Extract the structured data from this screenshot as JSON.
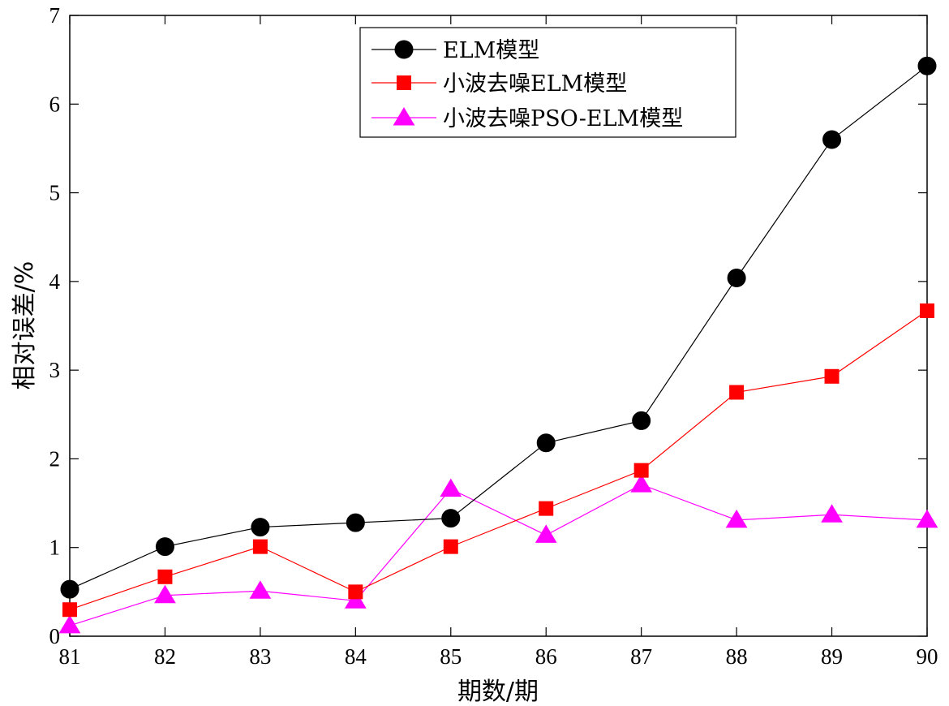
{
  "chart_data": {
    "type": "line",
    "title": "",
    "xlabel": "期数/期",
    "ylabel": "相对误差/%",
    "x": [
      81,
      82,
      83,
      84,
      85,
      86,
      87,
      88,
      89,
      90
    ],
    "xlim": [
      81,
      90
    ],
    "ylim": [
      0,
      7
    ],
    "xticks": [
      81,
      82,
      83,
      84,
      85,
      86,
      87,
      88,
      89,
      90
    ],
    "yticks": [
      0,
      1,
      2,
      3,
      4,
      5,
      6,
      7
    ],
    "grid": false,
    "legend": "top-center",
    "series": [
      {
        "name": "ELM模型",
        "marker": "circle",
        "line_color": "#000000",
        "marker_color": "#000000",
        "values": [
          0.53,
          1.01,
          1.23,
          1.28,
          1.33,
          2.18,
          2.43,
          4.04,
          5.6,
          6.43
        ]
      },
      {
        "name": "小波去噪ELM模型",
        "marker": "square",
        "line_color": "#ff0000",
        "marker_color": "#ff0000",
        "values": [
          0.3,
          0.67,
          1.01,
          0.5,
          1.01,
          1.44,
          1.87,
          2.75,
          2.93,
          3.67
        ]
      },
      {
        "name": "小波去噪PSO-ELM模型",
        "marker": "triangle",
        "line_color": "#ff00ff",
        "marker_color": "#ff00ff",
        "values": [
          0.12,
          0.46,
          0.51,
          0.4,
          1.66,
          1.14,
          1.71,
          1.31,
          1.37,
          1.31
        ]
      }
    ]
  }
}
